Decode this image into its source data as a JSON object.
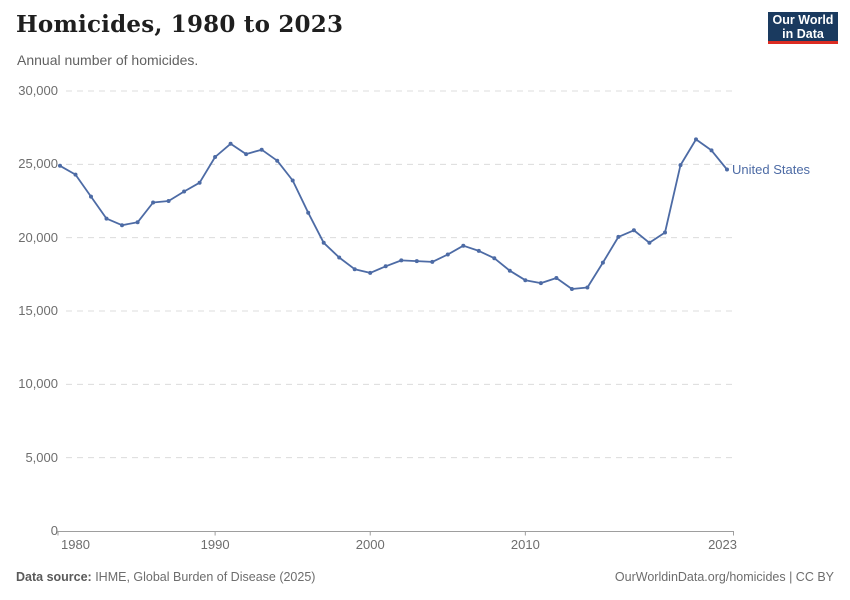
{
  "header": {
    "title": "Homicides, 1980 to 2023",
    "subtitle": "Annual number of homicides."
  },
  "logo": {
    "line1": "Our World",
    "line2": "in Data",
    "bg_color": "#1a3a5f",
    "accent_color": "#dc2c22"
  },
  "chart_data": {
    "type": "line",
    "title": "Homicides, 1980 to 2023",
    "subtitle": "Annual number of homicides.",
    "xlabel": "",
    "ylabel": "",
    "xlim": [
      1980,
      2023
    ],
    "ylim": [
      0,
      30000
    ],
    "x_tick_labels": [
      1980,
      1990,
      2000,
      2010,
      2023
    ],
    "y_tick_labels": [
      0,
      5000,
      10000,
      15000,
      20000,
      25000,
      30000
    ],
    "grid": "horizontal-dashed",
    "legend_position": "end-of-line-label",
    "x": [
      1980,
      1981,
      1982,
      1983,
      1984,
      1985,
      1986,
      1987,
      1988,
      1989,
      1990,
      1991,
      1992,
      1993,
      1994,
      1995,
      1996,
      1997,
      1998,
      1999,
      2000,
      2001,
      2002,
      2003,
      2004,
      2005,
      2006,
      2007,
      2008,
      2009,
      2010,
      2011,
      2012,
      2013,
      2014,
      2015,
      2016,
      2017,
      2018,
      2019,
      2020,
      2021,
      2022,
      2023
    ],
    "series": [
      {
        "name": "United States",
        "color": "#4d6ba5",
        "values": [
          24900,
          24300,
          22800,
          21300,
          20850,
          21050,
          22400,
          22500,
          23150,
          23750,
          25500,
          26400,
          25700,
          26000,
          25250,
          23900,
          21700,
          19650,
          18650,
          17850,
          17600,
          18050,
          18450,
          18400,
          18350,
          18850,
          19450,
          19100,
          18600,
          17750,
          17100,
          16900,
          17250,
          16500,
          16600,
          18300,
          20050,
          20500,
          19650,
          20350,
          24950,
          26700,
          25950,
          24650
        ]
      }
    ],
    "grid_color": "#dcdcdc",
    "axis_color": "#9e9e9e",
    "tick_label_color": "#6e6e6e"
  },
  "footer": {
    "source_label": "Data source:",
    "source_text": " IHME, Global Burden of Disease (2025)",
    "right_text": "OurWorldinData.org/homicides | CC BY"
  }
}
